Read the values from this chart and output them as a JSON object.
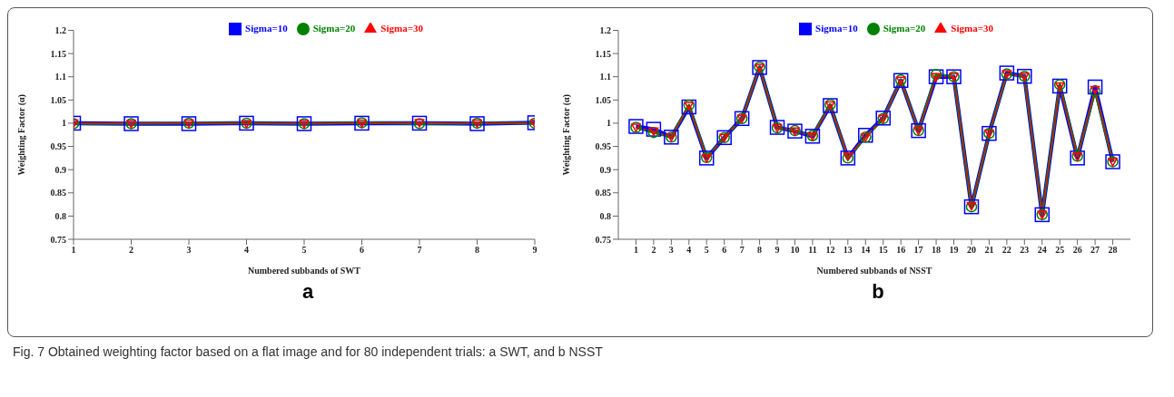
{
  "chart_data": [
    {
      "type": "line",
      "xlabel": "Numbered subbands of SWT",
      "ylabel": "Weighting Factor (α)",
      "x": [
        1,
        2,
        3,
        4,
        5,
        6,
        7,
        8,
        9
      ],
      "xlim": [
        1,
        9
      ],
      "xticks": [
        1,
        2,
        3,
        4,
        5,
        6,
        7,
        8,
        9
      ],
      "ylim": [
        0.75,
        1.2
      ],
      "yticks": [
        0.75,
        0.8,
        0.85,
        0.9,
        0.95,
        1,
        1.05,
        1.1,
        1.15,
        1.2
      ],
      "legend": "top",
      "grid": false,
      "annotations": [
        "a"
      ],
      "series": [
        {
          "name": "Sigma=10",
          "color": "#0000ff",
          "marker": "square",
          "values": [
            1,
            0.999,
            0.999,
            1,
            0.999,
            1,
            1,
            0.999,
            1.001
          ]
        },
        {
          "name": "Sigma=20",
          "color": "#008000",
          "marker": "circle",
          "values": [
            0.999,
            0.999,
            1,
            1,
            0.999,
            1.001,
            0.999,
            1,
            1
          ]
        },
        {
          "name": "Sigma=30",
          "color": "#ff0000",
          "marker": "triangle",
          "values": [
            1,
            0.999,
            1,
            0.999,
            0.999,
            1,
            1.001,
            1,
            1
          ]
        }
      ]
    },
    {
      "type": "line",
      "xlabel": "Numbered subbands of NSST",
      "ylabel": "Weighting Factor (α)",
      "x": [
        1,
        2,
        3,
        4,
        5,
        6,
        7,
        8,
        9,
        10,
        11,
        12,
        13,
        14,
        15,
        16,
        17,
        18,
        19,
        20,
        21,
        22,
        23,
        24,
        25,
        26,
        27,
        28
      ],
      "xlim": [
        0,
        29
      ],
      "xticks": [
        1,
        2,
        3,
        4,
        5,
        6,
        7,
        8,
        9,
        10,
        11,
        12,
        13,
        14,
        15,
        16,
        17,
        18,
        19,
        20,
        21,
        22,
        23,
        24,
        25,
        26,
        27,
        28
      ],
      "ylim": [
        0.75,
        1.2
      ],
      "yticks": [
        0.75,
        0.8,
        0.85,
        0.9,
        0.95,
        1,
        1.05,
        1.1,
        1.15,
        1.2
      ],
      "legend": "top",
      "grid": false,
      "annotations": [
        "b",
        "Fig. 7 Obtained weighting factor based on a flat image and for 80 independent trials: a SWT, and b NSST"
      ],
      "series": [
        {
          "name": "Sigma=10",
          "color": "#0000ff",
          "marker": "square",
          "values": [
            0.993,
            0.987,
            0.97,
            1.035,
            0.925,
            0.969,
            1.01,
            1.12,
            0.991,
            0.983,
            0.972,
            1.038,
            0.925,
            0.974,
            1.011,
            1.092,
            0.984,
            1.1,
            1.1,
            0.82,
            0.978,
            1.108,
            1.101,
            0.803,
            1.08,
            0.925,
            1.078,
            0.917
          ]
        },
        {
          "name": "Sigma=20",
          "color": "#008000",
          "marker": "circle",
          "values": [
            0.991,
            0.98,
            0.97,
            1.039,
            0.926,
            0.969,
            1.01,
            1.121,
            0.99,
            0.984,
            0.973,
            1.04,
            0.925,
            0.97,
            1.01,
            1.093,
            0.984,
            1.105,
            1.1,
            0.82,
            0.978,
            1.106,
            1.101,
            0.803,
            1.083,
            0.929,
            1.069,
            0.917
          ]
        },
        {
          "name": "Sigma=30",
          "color": "#ff0000",
          "marker": "triangle",
          "values": [
            0.991,
            0.983,
            0.97,
            1.038,
            0.925,
            0.969,
            1.01,
            1.12,
            0.99,
            0.983,
            0.972,
            1.039,
            0.928,
            0.97,
            1.01,
            1.092,
            0.984,
            1.1,
            1.1,
            0.822,
            0.978,
            1.106,
            1.101,
            0.803,
            1.08,
            0.928,
            1.072,
            0.917
          ]
        }
      ]
    }
  ]
}
